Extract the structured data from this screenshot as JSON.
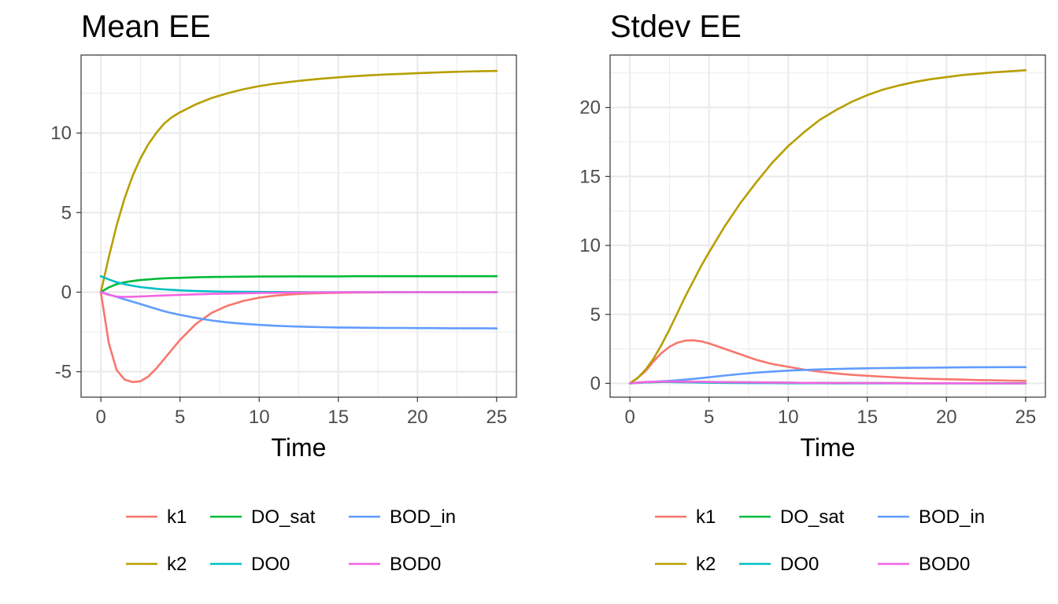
{
  "chart_data": [
    {
      "type": "line",
      "title": "Mean EE",
      "xlabel": "Time",
      "ylabel": "",
      "xlim": [
        -1.25,
        26.25
      ],
      "ylim": [
        -6.6,
        14.9
      ],
      "xticks": [
        0,
        5,
        10,
        15,
        20,
        25
      ],
      "yticks": [
        -5,
        0,
        5,
        10
      ],
      "ytick_labels": [
        "-5",
        "0",
        "5",
        "10"
      ],
      "grid": true,
      "legend": "bottom",
      "x": [
        0,
        0.5,
        1,
        1.5,
        2,
        2.5,
        3,
        3.5,
        4,
        4.5,
        5,
        6,
        7,
        8,
        9,
        10,
        11,
        12,
        13,
        14,
        15,
        16,
        17,
        18,
        19,
        20,
        21,
        22,
        23,
        24,
        25
      ],
      "series": [
        {
          "name": "k1",
          "color": "#F8766D",
          "values": [
            0,
            -3.2,
            -4.9,
            -5.5,
            -5.65,
            -5.6,
            -5.3,
            -4.8,
            -4.2,
            -3.6,
            -3.0,
            -2.0,
            -1.3,
            -0.85,
            -0.55,
            -0.35,
            -0.22,
            -0.14,
            -0.09,
            -0.06,
            -0.04,
            -0.025,
            -0.015,
            -0.01,
            -0.005,
            0,
            0,
            0,
            0,
            0,
            0
          ]
        },
        {
          "name": "k2",
          "color": "#B79F00",
          "values": [
            0,
            2.2,
            4.2,
            5.9,
            7.3,
            8.4,
            9.3,
            10.0,
            10.6,
            11.0,
            11.3,
            11.8,
            12.2,
            12.5,
            12.75,
            12.95,
            13.1,
            13.22,
            13.33,
            13.42,
            13.5,
            13.57,
            13.63,
            13.68,
            13.72,
            13.76,
            13.8,
            13.83,
            13.86,
            13.88,
            13.9
          ]
        },
        {
          "name": "DO_sat",
          "color": "#00BA38",
          "values": [
            0,
            0.3,
            0.5,
            0.62,
            0.7,
            0.76,
            0.8,
            0.84,
            0.87,
            0.89,
            0.9,
            0.93,
            0.95,
            0.96,
            0.97,
            0.98,
            0.98,
            0.99,
            0.99,
            0.99,
            0.99,
            1.0,
            1.0,
            1.0,
            1.0,
            1.0,
            1.0,
            1.0,
            1.0,
            1.0,
            1.0
          ]
        },
        {
          "name": "DO0",
          "color": "#00BFC4",
          "values": [
            1.0,
            0.8,
            0.62,
            0.5,
            0.4,
            0.32,
            0.26,
            0.21,
            0.17,
            0.14,
            0.11,
            0.07,
            0.05,
            0.03,
            0.02,
            0.015,
            0.01,
            0.005,
            0,
            0,
            0,
            0,
            0,
            0,
            0,
            0,
            0,
            0,
            0,
            0,
            0
          ]
        },
        {
          "name": "BOD_in",
          "color": "#619CFF",
          "values": [
            0,
            -0.15,
            -0.3,
            -0.45,
            -0.6,
            -0.75,
            -0.9,
            -1.05,
            -1.2,
            -1.32,
            -1.43,
            -1.62,
            -1.78,
            -1.9,
            -1.99,
            -2.06,
            -2.11,
            -2.15,
            -2.18,
            -2.2,
            -2.22,
            -2.23,
            -2.24,
            -2.25,
            -2.25,
            -2.26,
            -2.26,
            -2.27,
            -2.27,
            -2.27,
            -2.28
          ]
        },
        {
          "name": "BOD0",
          "color": "#F564E3",
          "values": [
            0,
            -0.17,
            -0.28,
            -0.3,
            -0.29,
            -0.27,
            -0.25,
            -0.23,
            -0.21,
            -0.19,
            -0.17,
            -0.14,
            -0.11,
            -0.09,
            -0.07,
            -0.05,
            -0.04,
            -0.03,
            -0.02,
            -0.015,
            -0.01,
            -0.005,
            0,
            0,
            0,
            0,
            0,
            0,
            0,
            0,
            0
          ]
        }
      ]
    },
    {
      "type": "line",
      "title": "Stdev EE",
      "xlabel": "Time",
      "ylabel": "",
      "xlim": [
        -1.25,
        26.25
      ],
      "ylim": [
        -1.0,
        23.8
      ],
      "xticks": [
        0,
        5,
        10,
        15,
        20,
        25
      ],
      "yticks": [
        0,
        5,
        10,
        15,
        20
      ],
      "ytick_labels": [
        "0",
        "5",
        "10",
        "15",
        "20"
      ],
      "grid": true,
      "legend": "bottom",
      "x": [
        0,
        0.5,
        1,
        1.5,
        2,
        2.5,
        3,
        3.5,
        4,
        4.5,
        5,
        6,
        7,
        8,
        9,
        10,
        11,
        12,
        13,
        14,
        15,
        16,
        17,
        18,
        19,
        20,
        21,
        22,
        23,
        24,
        25
      ],
      "series": [
        {
          "name": "k1",
          "color": "#F8766D",
          "values": [
            0,
            0.4,
            0.9,
            1.6,
            2.2,
            2.65,
            2.95,
            3.1,
            3.12,
            3.05,
            2.9,
            2.5,
            2.1,
            1.7,
            1.4,
            1.2,
            1.0,
            0.85,
            0.72,
            0.62,
            0.55,
            0.48,
            0.42,
            0.37,
            0.33,
            0.3,
            0.27,
            0.24,
            0.22,
            0.2,
            0.18
          ]
        },
        {
          "name": "k2",
          "color": "#B79F00",
          "values": [
            0,
            0.4,
            1.0,
            1.8,
            2.8,
            3.9,
            5.1,
            6.3,
            7.4,
            8.5,
            9.5,
            11.4,
            13.1,
            14.6,
            16.0,
            17.2,
            18.2,
            19.1,
            19.8,
            20.4,
            20.9,
            21.3,
            21.6,
            21.85,
            22.05,
            22.2,
            22.35,
            22.45,
            22.55,
            22.62,
            22.7
          ]
        },
        {
          "name": "DO_sat",
          "color": "#00BA38",
          "values": [
            0,
            0.04,
            0.07,
            0.09,
            0.1,
            0.1,
            0.1,
            0.1,
            0.1,
            0.1,
            0.1,
            0.09,
            0.08,
            0.07,
            0.06,
            0.05,
            0.04,
            0.04,
            0.03,
            0.03,
            0.02,
            0.02,
            0.02,
            0.01,
            0.01,
            0.01,
            0.01,
            0.01,
            0.01,
            0.01,
            0.01
          ]
        },
        {
          "name": "DO0",
          "color": "#00BFC4",
          "values": [
            0,
            0.05,
            0.08,
            0.1,
            0.1,
            0.1,
            0.09,
            0.08,
            0.07,
            0.06,
            0.05,
            0.04,
            0.03,
            0.02,
            0.02,
            0.01,
            0.01,
            0.01,
            0,
            0,
            0,
            0,
            0,
            0,
            0,
            0,
            0,
            0,
            0,
            0,
            0
          ]
        },
        {
          "name": "BOD_in",
          "color": "#619CFF",
          "values": [
            0,
            0.05,
            0.09,
            0.12,
            0.15,
            0.18,
            0.22,
            0.27,
            0.32,
            0.38,
            0.44,
            0.57,
            0.68,
            0.78,
            0.86,
            0.92,
            0.97,
            1.01,
            1.04,
            1.07,
            1.09,
            1.11,
            1.12,
            1.13,
            1.14,
            1.15,
            1.16,
            1.17,
            1.17,
            1.18,
            1.18
          ]
        },
        {
          "name": "BOD0",
          "color": "#F564E3",
          "values": [
            0,
            0.06,
            0.1,
            0.12,
            0.13,
            0.13,
            0.13,
            0.12,
            0.12,
            0.11,
            0.1,
            0.09,
            0.08,
            0.07,
            0.06,
            0.05,
            0.04,
            0.03,
            0.03,
            0.02,
            0.02,
            0.02,
            0.01,
            0.01,
            0.01,
            0.01,
            0.01,
            0.01,
            0,
            0,
            0
          ]
        }
      ]
    }
  ]
}
